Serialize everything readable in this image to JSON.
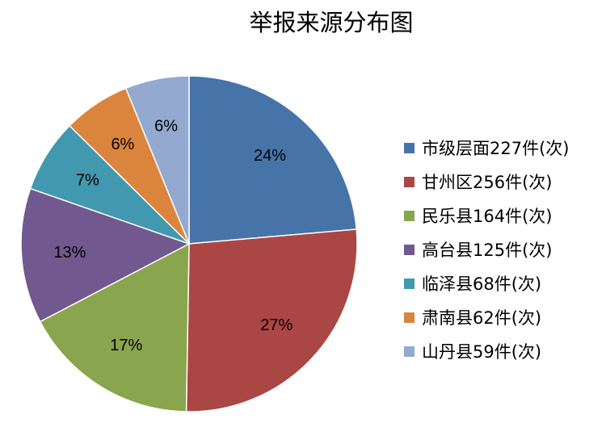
{
  "chart_data": {
    "type": "pie",
    "title": "举报来源分布图",
    "categories": [
      "市级层面227件(次)",
      "甘州区256件(次)",
      "民乐县164件(次)",
      "高台县125件(次)",
      "临泽县68件(次)",
      "肃南县62件(次)",
      "山丹县59件(次)"
    ],
    "values": [
      227,
      256,
      164,
      125,
      68,
      62,
      59
    ],
    "percent_labels": [
      "24%",
      "27%",
      "17%",
      "13%",
      "7%",
      "6%",
      "6%"
    ],
    "colors": [
      "#4674A9",
      "#AA4644",
      "#89A54E",
      "#71588F",
      "#4198AF",
      "#DB843D",
      "#93A9CF"
    ],
    "legend_position": "right",
    "start_angle": "12 o'clock",
    "direction": "clockwise"
  }
}
